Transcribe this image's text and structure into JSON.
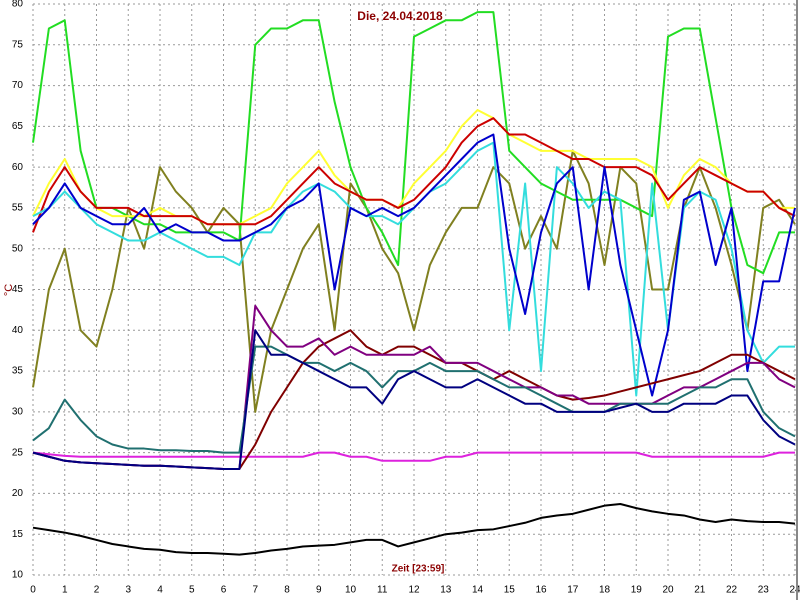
{
  "chart_data": {
    "type": "line",
    "title": "Die, 24.04.2018",
    "x_label": "Zeit [23:59]",
    "y_label": "°C",
    "grid": true,
    "xlim": [
      0,
      24
    ],
    "ylim": [
      10,
      80
    ],
    "xticks": [
      0,
      1,
      2,
      3,
      4,
      5,
      6,
      7,
      8,
      9,
      10,
      11,
      12,
      13,
      14,
      15,
      16,
      17,
      18,
      19,
      20,
      21,
      22,
      23,
      24
    ],
    "yticks": [
      10,
      15,
      20,
      25,
      30,
      35,
      40,
      45,
      50,
      55,
      60,
      65,
      70,
      75,
      80
    ],
    "x": [
      0,
      0.5,
      1,
      1.5,
      2,
      2.5,
      3,
      3.5,
      4,
      4.5,
      5,
      5.5,
      6,
      6.5,
      7,
      7.5,
      8,
      8.5,
      9,
      9.5,
      10,
      10.5,
      11,
      11.5,
      12,
      12.5,
      13,
      13.5,
      14,
      14.5,
      15,
      15.5,
      16,
      16.5,
      17,
      17.5,
      18,
      18.5,
      19,
      19.5,
      20,
      20.5,
      21,
      21.5,
      22,
      22.5,
      23,
      23.5,
      24
    ],
    "series": [
      {
        "color": "#808020",
        "values": [
          33,
          45,
          50,
          40,
          38,
          45,
          55,
          50,
          60,
          57,
          55,
          52,
          55,
          53,
          30,
          40,
          45,
          50,
          53,
          40,
          58,
          55,
          50,
          47,
          40,
          48,
          52,
          55,
          55,
          60,
          58,
          50,
          54,
          50,
          62,
          58,
          48,
          60,
          58,
          45,
          45,
          55,
          60,
          55,
          48,
          40,
          55,
          56,
          53
        ]
      },
      {
        "color": "#22dd22",
        "values": [
          63,
          77,
          78,
          62,
          55,
          55,
          54,
          53,
          53,
          52,
          52,
          52,
          52,
          51,
          75,
          77,
          77,
          78,
          78,
          68,
          60,
          55,
          52,
          48,
          76,
          77,
          78,
          78,
          79,
          79,
          62,
          60,
          58,
          57,
          56,
          56,
          56,
          56,
          55,
          54,
          76,
          77,
          77,
          66,
          55,
          48,
          47,
          52,
          52
        ]
      },
      {
        "color": "#ffff33",
        "values": [
          54,
          58,
          61,
          57,
          55,
          54,
          54,
          54,
          55,
          54,
          54,
          53,
          53,
          53,
          54,
          55,
          58,
          60,
          62,
          59,
          57,
          56,
          56,
          55,
          58,
          60,
          62,
          65,
          67,
          66,
          64,
          63,
          62,
          62,
          62,
          61,
          61,
          61,
          61,
          60,
          55,
          59,
          61,
          60,
          58,
          57,
          57,
          55,
          55
        ]
      },
      {
        "color": "#cc0000",
        "values": [
          52,
          57,
          60,
          57,
          55,
          55,
          55,
          54,
          54,
          54,
          54,
          53,
          53,
          53,
          53,
          54,
          56,
          58,
          60,
          58,
          57,
          56,
          56,
          55,
          56,
          58,
          60,
          63,
          65,
          66,
          64,
          64,
          63,
          62,
          61,
          61,
          60,
          60,
          60,
          59,
          56,
          58,
          60,
          59,
          58,
          57,
          57,
          55,
          54
        ]
      },
      {
        "color": "#33dddd",
        "values": [
          54,
          55,
          57,
          55,
          53,
          52,
          51,
          51,
          52,
          51,
          50,
          49,
          49,
          48,
          52,
          52,
          55,
          57,
          58,
          57,
          55,
          54,
          54,
          53,
          55,
          57,
          58,
          60,
          62,
          63,
          40,
          58,
          35,
          60,
          58,
          55,
          57,
          56,
          32,
          58,
          40,
          55,
          57,
          56,
          50,
          40,
          36,
          38,
          38
        ]
      },
      {
        "color": "#0000cc",
        "values": [
          53,
          55,
          58,
          55,
          54,
          53,
          53,
          55,
          52,
          53,
          52,
          52,
          51,
          51,
          52,
          53,
          55,
          56,
          58,
          45,
          55,
          54,
          55,
          54,
          55,
          57,
          59,
          61,
          63,
          64,
          50,
          42,
          52,
          58,
          60,
          45,
          60,
          48,
          40,
          32,
          40,
          56,
          57,
          48,
          55,
          35,
          46,
          46,
          55
        ]
      },
      {
        "color": "#dd22dd",
        "values": [
          25,
          24.8,
          24.6,
          24.5,
          24.5,
          24.5,
          24.5,
          24.5,
          24.5,
          24.5,
          24.5,
          24.5,
          24.5,
          24.5,
          24.5,
          24.5,
          24.5,
          24.5,
          25,
          25,
          24.5,
          24.5,
          24,
          24,
          24,
          24,
          24.5,
          24.5,
          25,
          25,
          25,
          25,
          25,
          25,
          25,
          25,
          25,
          25,
          25,
          24.5,
          24.5,
          24.5,
          24.5,
          24.5,
          24.5,
          24.5,
          24.5,
          25,
          25
        ]
      },
      {
        "color": "#800000",
        "values": [
          25,
          24.5,
          24,
          23.8,
          23.7,
          23.6,
          23.5,
          23.4,
          23.4,
          23.3,
          23.2,
          23.1,
          23,
          23,
          26,
          30,
          33,
          36,
          38,
          39,
          40,
          38,
          37,
          38,
          38,
          37,
          36,
          36,
          35,
          34,
          35,
          34,
          33,
          32,
          31.5,
          31.7,
          32,
          32.5,
          33,
          33.5,
          34,
          34.5,
          35,
          36,
          37,
          37,
          36,
          35,
          34
        ]
      },
      {
        "color": "#800080",
        "values": [
          25,
          24.5,
          24,
          23.8,
          23.7,
          23.6,
          23.5,
          23.4,
          23.4,
          23.3,
          23.2,
          23.1,
          23,
          23,
          43,
          40,
          38,
          38,
          39,
          37,
          38,
          37,
          37,
          37,
          37,
          38,
          36,
          36,
          36,
          35,
          34,
          33,
          33,
          32,
          32,
          31,
          31,
          31,
          31,
          31,
          32,
          33,
          33,
          34,
          35,
          36,
          36,
          34,
          33
        ]
      },
      {
        "color": "#207070",
        "values": [
          26.5,
          28,
          31.5,
          29,
          27,
          26,
          25.5,
          25.5,
          25.3,
          25.3,
          25.2,
          25.2,
          25,
          25,
          38,
          38,
          37,
          36,
          36,
          35,
          36,
          35,
          33,
          35,
          35,
          36,
          35,
          35,
          35,
          34,
          33,
          33,
          32,
          31,
          30,
          30,
          30,
          31,
          31,
          31,
          31,
          32,
          33,
          33,
          34,
          34,
          30,
          28,
          27
        ]
      },
      {
        "color": "#000080",
        "values": [
          25,
          24.5,
          24,
          23.8,
          23.7,
          23.6,
          23.5,
          23.4,
          23.4,
          23.3,
          23.2,
          23.1,
          23,
          23,
          40,
          37,
          37,
          36,
          35,
          34,
          33,
          33,
          31,
          34,
          35,
          34,
          33,
          33,
          34,
          33,
          32,
          31,
          31,
          30,
          30,
          30,
          30,
          30.5,
          31,
          30,
          30,
          31,
          31,
          31,
          32,
          32,
          29,
          27,
          26
        ]
      },
      {
        "color": "#000000",
        "values": [
          15.8,
          15.5,
          15.2,
          14.8,
          14.3,
          13.8,
          13.5,
          13.2,
          13.1,
          12.8,
          12.7,
          12.7,
          12.6,
          12.5,
          12.7,
          13,
          13.2,
          13.5,
          13.6,
          13.7,
          14,
          14.3,
          14.3,
          13.5,
          14,
          14.5,
          15,
          15.2,
          15.5,
          15.6,
          16,
          16.4,
          17,
          17.3,
          17.5,
          18,
          18.5,
          18.7,
          18.2,
          17.8,
          17.5,
          17.3,
          16.8,
          16.5,
          16.8,
          16.6,
          16.5,
          16.5,
          16.3
        ]
      }
    ]
  }
}
